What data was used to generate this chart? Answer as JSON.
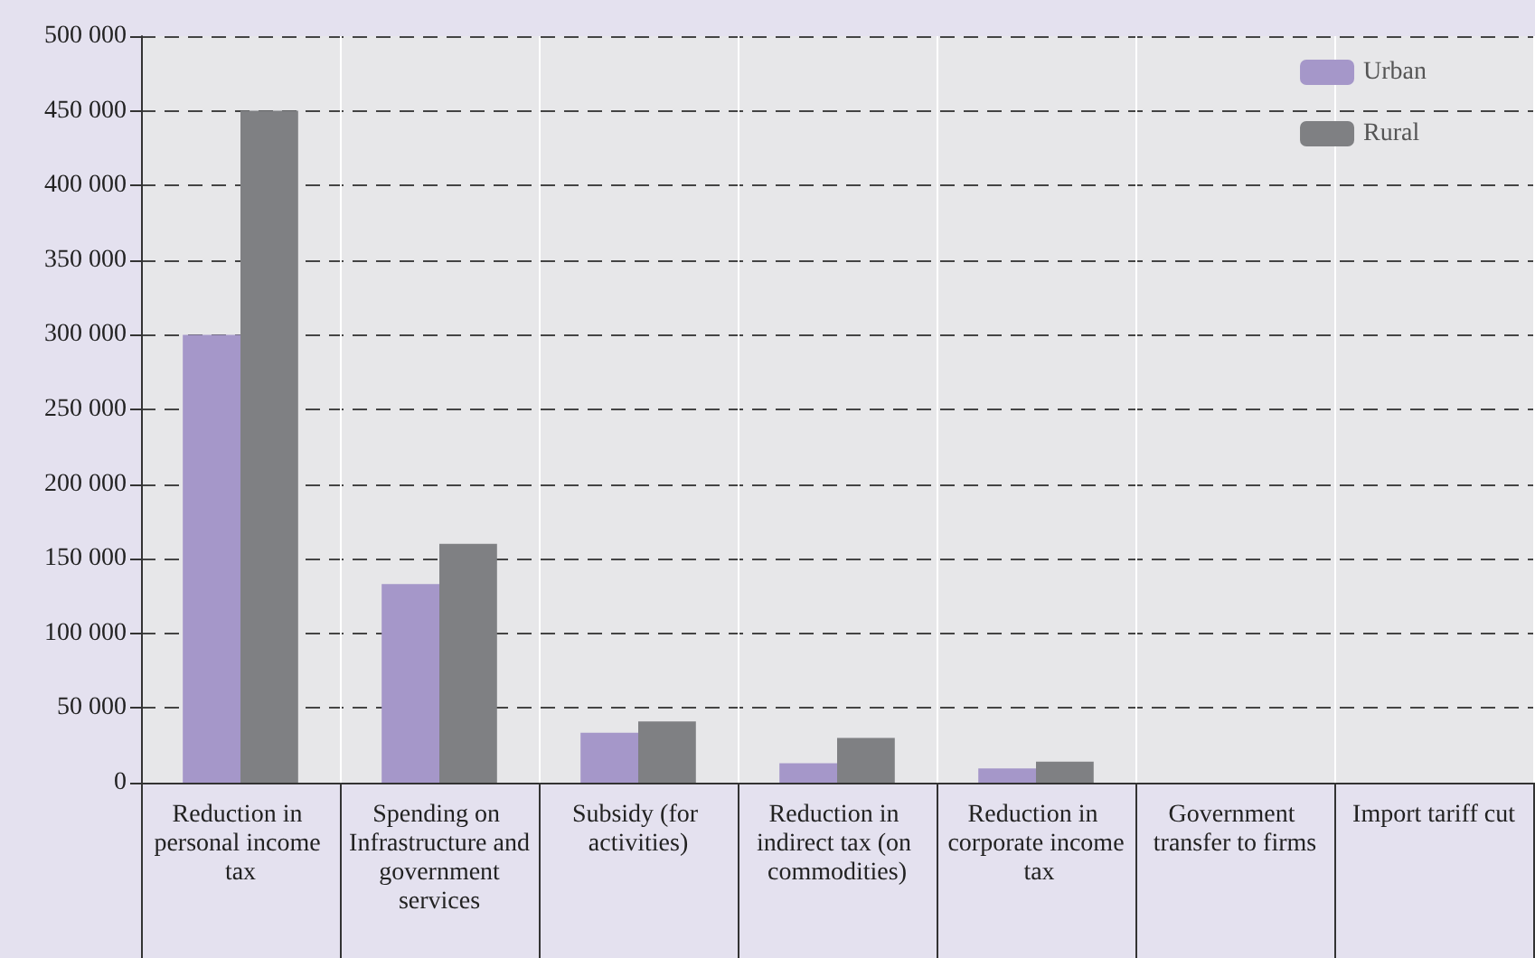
{
  "chart_data": {
    "type": "bar",
    "categories": [
      "Reduction in personal income tax",
      "Spending on Infrastructure and government services",
      "Subsidy (for activities)",
      "Reduction in indirect tax (on commodities)",
      "Reduction in corporate income tax",
      "Government transfer to firms",
      "Import tariff cut"
    ],
    "series": [
      {
        "name": "Urban",
        "color": "#a597c9",
        "values": [
          300000,
          133000,
          33500,
          13000,
          9500,
          0,
          0
        ]
      },
      {
        "name": "Rural",
        "color": "#7f8083",
        "values": [
          450000,
          160000,
          41000,
          30000,
          14000,
          0,
          0
        ]
      }
    ],
    "ylim": [
      0,
      500000
    ],
    "yticks": [
      {
        "value": 0,
        "label": "0"
      },
      {
        "value": 50000,
        "label": "50 000"
      },
      {
        "value": 100000,
        "label": "100 000"
      },
      {
        "value": 150000,
        "label": "150 000"
      },
      {
        "value": 200000,
        "label": "200 000"
      },
      {
        "value": 250000,
        "label": "250 000"
      },
      {
        "value": 300000,
        "label": "300 000"
      },
      {
        "value": 350000,
        "label": "350 000"
      },
      {
        "value": 400000,
        "label": "400 000"
      },
      {
        "value": 450000,
        "label": "450 000"
      },
      {
        "value": 500000,
        "label": "500 000"
      }
    ],
    "grid": "y",
    "legend": "top right"
  }
}
